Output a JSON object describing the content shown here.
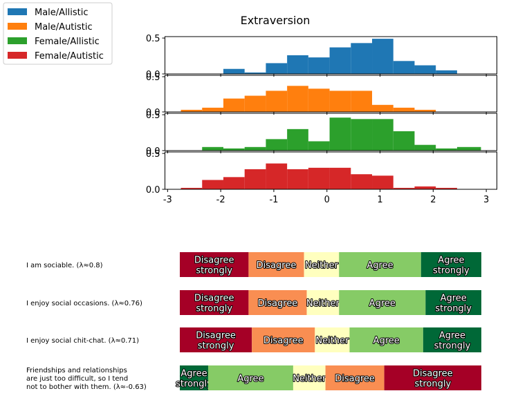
{
  "chart_data": [
    {
      "type": "bar",
      "subtype": "stacked-histograms",
      "title": "Extraversion",
      "xlim": [
        -3.05,
        3.2
      ],
      "xticks": [
        "-3",
        "-2",
        "-1",
        "0",
        "1",
        "2",
        "3"
      ],
      "xtick_values": [
        -3,
        -2,
        -1,
        0,
        1,
        2,
        3
      ],
      "ylim": [
        0,
        0.52
      ],
      "bin_edges": [
        -2.75,
        -2.35,
        -1.95,
        -1.55,
        -1.15,
        -0.75,
        -0.35,
        0.05,
        0.45,
        0.85,
        1.25,
        1.65,
        2.05,
        2.45,
        2.9
      ],
      "legend": {
        "placement": "upper-left-outside",
        "entries": [
          "Male/Allistic",
          "Male/Autistic",
          "Female/Allistic",
          "Female/Autistic"
        ]
      },
      "series": [
        {
          "name": "Male/Allistic",
          "color": "#1f77b4",
          "y_top_tick": "0.5",
          "y_bottom_tick": "0.0",
          "values": [
            0,
            0,
            0.07,
            0.02,
            0.15,
            0.26,
            0.23,
            0.37,
            0.43,
            0.49,
            0.18,
            0.12,
            0.05,
            0
          ]
        },
        {
          "name": "Male/Autistic",
          "color": "#ff7f0e",
          "y_top_tick": "0.5",
          "y_bottom_tick": "0.0",
          "values": [
            0.03,
            0.06,
            0.19,
            0.23,
            0.3,
            0.37,
            0.33,
            0.3,
            0.3,
            0.1,
            0.06,
            0.03,
            0,
            0
          ]
        },
        {
          "name": "Female/Allistic",
          "color": "#2ca02c",
          "y_top_tick": "0.5",
          "y_bottom_tick": "0.0",
          "values": [
            0,
            0.05,
            0.03,
            0.05,
            0.16,
            0.3,
            0.13,
            0.46,
            0.44,
            0.44,
            0.27,
            0.08,
            0.03,
            0.05
          ]
        },
        {
          "name": "Female/Autistic",
          "color": "#d62728",
          "y_top_tick": "0.5",
          "y_bottom_tick": "0.0",
          "values": [
            0.02,
            0.13,
            0.17,
            0.28,
            0.36,
            0.28,
            0.3,
            0.3,
            0.21,
            0.19,
            0.02,
            0.04,
            0.02,
            0
          ]
        }
      ]
    },
    {
      "type": "bar",
      "subtype": "diverging-stacked-horizontal",
      "categories": [
        "Disagree strongly",
        "Disagree",
        "Neither",
        "Agree",
        "Agree strongly"
      ],
      "colors": [
        "#a50026",
        "#f98e52",
        "#ffffbf",
        "#86cb66",
        "#006837"
      ],
      "items": [
        {
          "label_lines": [
            "I am sociable. (λ≈0.8)"
          ],
          "order": [
            0,
            1,
            2,
            3,
            4
          ],
          "values": [
            22.8,
            18.4,
            11.6,
            27.2,
            20.0
          ]
        },
        {
          "label_lines": [
            "I enjoy social occasions. (λ≈0.76)"
          ],
          "order": [
            0,
            1,
            2,
            3,
            4
          ],
          "values": [
            22.8,
            19.3,
            10.7,
            28.7,
            18.5
          ]
        },
        {
          "label_lines": [
            "I enjoy social chit-chat. (λ≈0.71)"
          ],
          "order": [
            0,
            1,
            2,
            3,
            4
          ],
          "values": [
            23.9,
            20.9,
            11.5,
            24.4,
            19.3
          ]
        },
        {
          "label_lines": [
            "Friendships and relationships",
            "are just too difficult, so I tend",
            "not to bother with them. (λ≈-0.63)"
          ],
          "order": [
            4,
            3,
            2,
            1,
            0
          ],
          "values": [
            9.4,
            28.2,
            10.7,
            19.5,
            32.2
          ]
        }
      ],
      "segment_labels": {
        "Disagree strongly": [
          "Disagree",
          "strongly"
        ],
        "Disagree": [
          "Disagree"
        ],
        "Neither": [
          "Neither"
        ],
        "Agree": [
          "Agree"
        ],
        "Agree strongly": [
          "Agree",
          "strongly"
        ]
      }
    }
  ]
}
